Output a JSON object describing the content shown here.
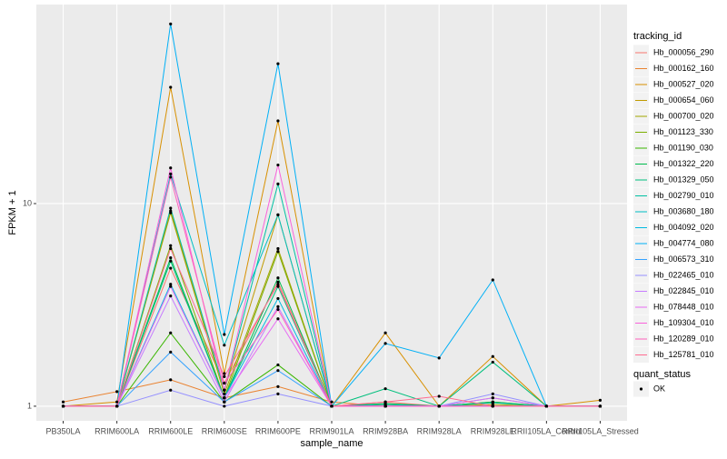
{
  "chart_data": {
    "type": "line",
    "x_label": "sample_name",
    "y_label": "FPKM + 1",
    "log_scale_y": true,
    "grid": true,
    "legend_title": "tracking_id",
    "legend_position": "right",
    "point_legend_title": "quant_status",
    "point_legend_label": "OK",
    "point_color": "#000000",
    "categories": [
      "PB350LA",
      "RRIM600LA",
      "RRIM600LE",
      "RRIM600SE",
      "RRIM600PE",
      "RRIM901LA",
      "RRIM928BA",
      "RRIM928LA",
      "RRIM928LE",
      "RRII105LA_Control",
      "RRII105LA_Stressed"
    ],
    "ylim": [
      0.847,
      96
    ],
    "yticks": [
      1,
      10
    ],
    "series": [
      {
        "name": "Hb_000056_290",
        "color": "#F8766D",
        "values": [
          1,
          1,
          4.8,
          1.3,
          4.1,
          1,
          1.05,
          1,
          1.1,
          1,
          1
        ]
      },
      {
        "name": "Hb_000162_160",
        "color": "#EA8331",
        "values": [
          1.05,
          1.18,
          1.35,
          1.1,
          1.25,
          1.05,
          1,
          1,
          1,
          1,
          1
        ]
      },
      {
        "name": "Hb_000527_020",
        "color": "#D89000",
        "values": [
          1,
          1.05,
          37.5,
          1.45,
          25.6,
          1,
          2.3,
          1,
          1.76,
          1,
          1.07
        ]
      },
      {
        "name": "Hb_000654_060",
        "color": "#C09B00",
        "values": [
          1,
          1,
          9.2,
          1.2,
          8.8,
          1,
          1.02,
          1,
          1.05,
          1,
          1
        ]
      },
      {
        "name": "Hb_000700_020",
        "color": "#A3A500",
        "values": [
          1,
          1,
          9,
          1.15,
          6,
          1,
          1,
          1,
          1.02,
          1,
          1
        ]
      },
      {
        "name": "Hb_001123_330",
        "color": "#7CAE00",
        "values": [
          1,
          1,
          6.2,
          1.1,
          5.8,
          1,
          1,
          1,
          1,
          1,
          1
        ]
      },
      {
        "name": "Hb_001190_030",
        "color": "#39B600",
        "values": [
          1,
          1,
          2.3,
          1.05,
          1.6,
          1,
          1,
          1,
          1,
          1,
          1
        ]
      },
      {
        "name": "Hb_001322_220",
        "color": "#00BB4E",
        "values": [
          1,
          1,
          5.4,
          1.1,
          4.3,
          1,
          1.03,
          1,
          1.05,
          1,
          1
        ]
      },
      {
        "name": "Hb_001329_050",
        "color": "#00BF7D",
        "values": [
          1,
          1,
          5.2,
          1.1,
          3.9,
          1,
          1.22,
          1,
          1.65,
          1,
          1
        ]
      },
      {
        "name": "Hb_002790_010",
        "color": "#00C1A3",
        "values": [
          1,
          1,
          9.5,
          1.2,
          12.5,
          1,
          1.02,
          1,
          1.04,
          1,
          1
        ]
      },
      {
        "name": "Hb_003680_180",
        "color": "#00BFC4",
        "values": [
          1,
          1,
          14,
          2.0,
          8.8,
          1,
          1,
          1,
          1,
          1,
          1
        ]
      },
      {
        "name": "Hb_004092_020",
        "color": "#00BAE0",
        "values": [
          1,
          1,
          4,
          1.1,
          3.4,
          1,
          1,
          1,
          1,
          1,
          1
        ]
      },
      {
        "name": "Hb_004774_080",
        "color": "#00B0F6",
        "values": [
          1,
          1,
          77,
          2.26,
          49,
          1,
          2.04,
          1.73,
          4.2,
          1,
          1
        ]
      },
      {
        "name": "Hb_006573_310",
        "color": "#35A2FF",
        "values": [
          1,
          1,
          1.85,
          1.05,
          1.5,
          1,
          1,
          1,
          1,
          1,
          1
        ]
      },
      {
        "name": "Hb_022465_010",
        "color": "#9590FF",
        "values": [
          1,
          1,
          1.2,
          1,
          1.15,
          1,
          1,
          1,
          1.15,
          1,
          1
        ]
      },
      {
        "name": "Hb_022845_010",
        "color": "#C77CFF",
        "values": [
          1,
          1,
          3.5,
          1.05,
          3.1,
          1,
          1,
          1,
          1.1,
          1,
          1
        ]
      },
      {
        "name": "Hb_078448_010",
        "color": "#E76BF3",
        "values": [
          1,
          1,
          3.9,
          1.1,
          2.7,
          1,
          1,
          1,
          1,
          1,
          1
        ]
      },
      {
        "name": "Hb_109304_010",
        "color": "#FA62DB",
        "values": [
          1,
          1,
          15,
          1.2,
          15.5,
          1,
          1,
          1,
          1,
          1,
          1
        ]
      },
      {
        "name": "Hb_120289_010",
        "color": "#FF62BC",
        "values": [
          1,
          1,
          13.5,
          1.3,
          3,
          1,
          1,
          1,
          1,
          1,
          1
        ]
      },
      {
        "name": "Hb_125781_010",
        "color": "#FF6C91",
        "values": [
          1,
          1,
          6,
          1.4,
          4,
          1,
          1.05,
          1.12,
          1,
          1,
          1
        ]
      }
    ]
  }
}
